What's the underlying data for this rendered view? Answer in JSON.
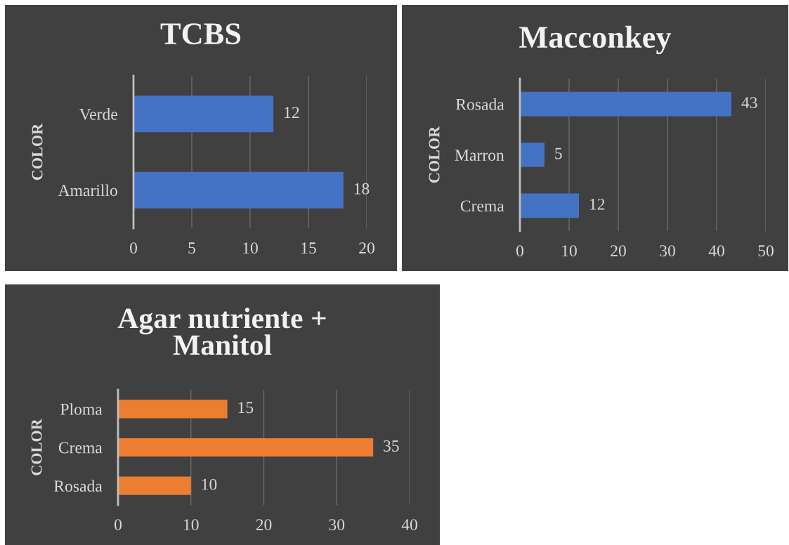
{
  "chart_data": [
    {
      "type": "bar",
      "orientation": "horizontal",
      "title": "TCBS",
      "ylabel": "COLOR",
      "categories": [
        "Verde",
        "Amarillo"
      ],
      "values": [
        12,
        18
      ],
      "color": "#4472c4",
      "xlim": [
        0,
        20
      ],
      "xticks": [
        0,
        5,
        10,
        15,
        20
      ],
      "grid": "x",
      "data_labels": true
    },
    {
      "type": "bar",
      "orientation": "horizontal",
      "title": "Macconkey",
      "ylabel": "COLOR",
      "categories": [
        "Rosada",
        "Marron",
        "Crema"
      ],
      "values": [
        43,
        5,
        12
      ],
      "color": "#4472c4",
      "xlim": [
        0,
        50
      ],
      "xticks": [
        0,
        10,
        20,
        30,
        40,
        50
      ],
      "grid": "x",
      "data_labels": true
    },
    {
      "type": "bar",
      "orientation": "horizontal",
      "title": "Agar nutriente + Manitol",
      "ylabel": "COLOR",
      "categories": [
        "Ploma",
        "Crema",
        "Rosada"
      ],
      "values": [
        15,
        35,
        10
      ],
      "color": "#ed7d31",
      "xlim": [
        0,
        40
      ],
      "xticks": [
        0,
        10,
        20,
        30,
        40
      ],
      "grid": "x",
      "data_labels": true
    }
  ]
}
